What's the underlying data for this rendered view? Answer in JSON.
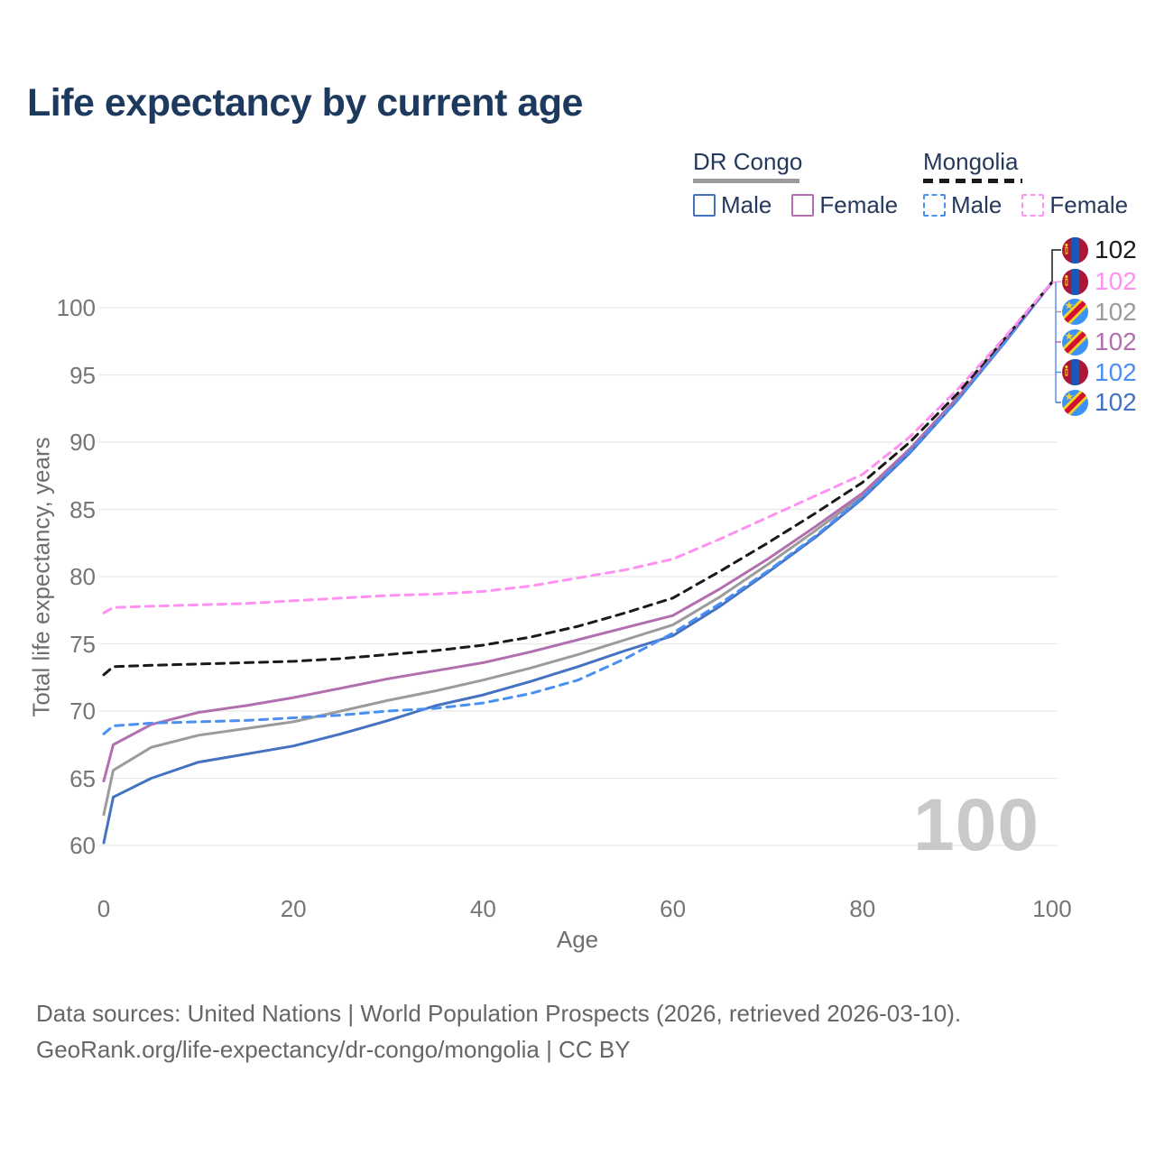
{
  "title": "Life expectancy by current age",
  "legend": {
    "groups": [
      {
        "label": "DR Congo",
        "line_style": "solid",
        "line_color": "#9b9b9b",
        "items": [
          {
            "label": "Male",
            "color": "#4472c0",
            "dashed": false
          },
          {
            "label": "Female",
            "color": "#b26fb0",
            "dashed": false
          }
        ]
      },
      {
        "label": "Mongolia",
        "line_style": "dashed",
        "line_color": "#1a1a1a",
        "items": [
          {
            "label": "Male",
            "color": "#4a90f2",
            "dashed": true
          },
          {
            "label": "Female",
            "color": "#fd92f0",
            "dashed": true
          }
        ]
      }
    ]
  },
  "chart_data": {
    "type": "line",
    "title": "Life expectancy by current age",
    "xlabel": "Age",
    "ylabel": "Total life expectancy, years",
    "xlim": [
      0,
      100
    ],
    "ylim": [
      60,
      102
    ],
    "x_ticks": [
      "0",
      "20",
      "40",
      "60",
      "80",
      "100"
    ],
    "y_ticks": [
      "60",
      "65",
      "70",
      "75",
      "80",
      "85",
      "90",
      "95",
      "100"
    ],
    "grid": true,
    "legend_position": "top-right",
    "age_counter": "100",
    "x": [
      0,
      1,
      5,
      10,
      15,
      20,
      25,
      30,
      35,
      40,
      45,
      50,
      55,
      60,
      65,
      70,
      75,
      80,
      85,
      90,
      95,
      100
    ],
    "series": [
      {
        "name": "DR Congo All",
        "country": "drcongo",
        "color": "#9b9b9b",
        "dashed": false,
        "values": [
          62.3,
          65.6,
          67.3,
          68.2,
          68.7,
          69.2,
          70.0,
          70.8,
          71.5,
          72.3,
          73.2,
          74.2,
          75.3,
          76.4,
          78.5,
          80.9,
          83.4,
          86.0,
          89.4,
          93.2,
          97.5,
          101.9
        ]
      },
      {
        "name": "DR Congo Male",
        "country": "drcongo",
        "color": "#4472c0",
        "dashed": false,
        "values": [
          60.2,
          63.6,
          65.0,
          66.2,
          66.8,
          67.4,
          68.3,
          69.3,
          70.4,
          71.2,
          72.2,
          73.3,
          74.5,
          75.6,
          77.8,
          80.3,
          82.9,
          85.8,
          89.2,
          93.1,
          97.4,
          101.9
        ]
      },
      {
        "name": "DR Congo Female",
        "country": "drcongo",
        "color": "#b26fb0",
        "dashed": false,
        "values": [
          64.8,
          67.5,
          69.0,
          69.9,
          70.4,
          71.0,
          71.7,
          72.4,
          73.0,
          73.6,
          74.4,
          75.3,
          76.2,
          77.1,
          79.1,
          81.3,
          83.7,
          86.2,
          89.5,
          93.3,
          97.5,
          101.9
        ]
      },
      {
        "name": "Mongolia Male",
        "country": "mongolia",
        "color": "#4a90f2",
        "dashed": true,
        "values": [
          68.3,
          68.9,
          69.1,
          69.2,
          69.3,
          69.5,
          69.7,
          70.0,
          70.2,
          70.6,
          71.3,
          72.3,
          73.9,
          75.8,
          78.0,
          80.4,
          83.0,
          85.9,
          89.3,
          93.1,
          97.4,
          101.9
        ]
      },
      {
        "name": "Mongolia All",
        "country": "mongolia",
        "color": "#1a1a1a",
        "dashed": true,
        "values": [
          72.7,
          73.3,
          73.4,
          73.5,
          73.6,
          73.7,
          73.9,
          74.2,
          74.5,
          74.9,
          75.5,
          76.3,
          77.3,
          78.4,
          80.4,
          82.5,
          84.7,
          87.0,
          90.0,
          93.6,
          97.7,
          101.9
        ]
      },
      {
        "name": "Mongolia Female",
        "country": "mongolia",
        "color": "#fd92f0",
        "dashed": true,
        "values": [
          77.3,
          77.7,
          77.8,
          77.9,
          78.0,
          78.2,
          78.4,
          78.6,
          78.7,
          78.9,
          79.3,
          79.9,
          80.5,
          81.3,
          82.8,
          84.4,
          86.0,
          87.6,
          90.4,
          93.9,
          97.8,
          101.9
        ]
      }
    ],
    "end_labels": [
      {
        "text": "102",
        "series": "Mongolia All",
        "flag": "mongolia",
        "color": "#1a1a1a"
      },
      {
        "text": "102",
        "series": "Mongolia Female",
        "flag": "mongolia",
        "color": "#fd92f0"
      },
      {
        "text": "102",
        "series": "DR Congo All",
        "flag": "drcongo",
        "color": "#9b9b9b"
      },
      {
        "text": "102",
        "series": "DR Congo Female",
        "flag": "drcongo",
        "color": "#b26fb0"
      },
      {
        "text": "102",
        "series": "Mongolia Male",
        "flag": "mongolia",
        "color": "#4a90f2"
      },
      {
        "text": "102",
        "series": "DR Congo Male",
        "flag": "drcongo",
        "color": "#4472c0"
      }
    ]
  },
  "footer": {
    "line1": "Data sources: United Nations | World Population Prospects (2026, retrieved 2026-03-10).",
    "line2": "GeoRank.org/life-expectancy/dr-congo/mongolia | CC BY"
  }
}
